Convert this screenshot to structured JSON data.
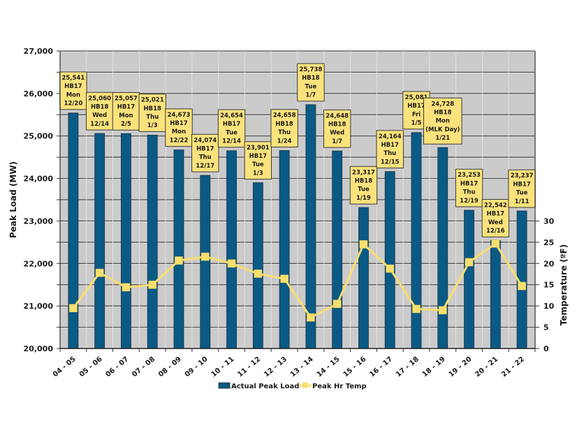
{
  "chart_data": {
    "type": "bar",
    "title": "",
    "xlabel": "",
    "ylabel": "Peak Load (MW)",
    "y2label": "Temperature (ºF)",
    "ylim": [
      20000,
      27000
    ],
    "y_ticks": [
      "20,000",
      "21,000",
      "22,000",
      "23,000",
      "24,000",
      "25,000",
      "26,000",
      "27,000"
    ],
    "y_tick_values": [
      20000,
      21000,
      22000,
      23000,
      24000,
      25000,
      26000,
      27000
    ],
    "y_gridline_step": 500,
    "y2lim": [
      0,
      70
    ],
    "y2_ticks": [
      "0",
      "5",
      "10",
      "15",
      "20",
      "25",
      "30"
    ],
    "y2_tick_values": [
      0,
      5,
      10,
      15,
      20,
      25,
      30
    ],
    "grid": true,
    "legend_position": "bottom",
    "categories": [
      "04 - 05",
      "05 - 06",
      "06 - 07",
      "07 - 08",
      "08 - 09",
      "09 - 10",
      "10 - 11",
      "11 - 12",
      "12 - 13",
      "13 - 14",
      "14 - 15",
      "15 - 16",
      "16 - 17",
      "17 - 18",
      "18 - 19",
      "19 - 20",
      "20 - 21",
      "21 - 22"
    ],
    "series": [
      {
        "name": "Actual Peak Load",
        "type": "bar",
        "axis": "left",
        "color": "#0A5A86",
        "values": [
          25541,
          25060,
          25057,
          25021,
          24673,
          24074,
          24654,
          23901,
          24658,
          25738,
          24648,
          23317,
          24164,
          25081,
          24728,
          23253,
          22542,
          23237
        ]
      },
      {
        "name": "Peak Hr Temp",
        "type": "line",
        "axis": "right",
        "color": "#F7DF6E",
        "values": [
          9.5,
          17.8,
          14.4,
          15,
          20.7,
          21.6,
          20,
          17.6,
          16.4,
          7.3,
          10.5,
          24.5,
          18.8,
          9.3,
          9,
          20.3,
          24.7,
          14.7
        ]
      }
    ],
    "annotations": [
      {
        "lines": [
          "25,541",
          "HB17",
          "Mon",
          "12/20"
        ]
      },
      {
        "lines": [
          "25,060",
          "HB18",
          "Wed",
          "12/14"
        ]
      },
      {
        "lines": [
          "25,057",
          "HB17",
          "Mon",
          "2/5"
        ]
      },
      {
        "lines": [
          "25,021",
          "HB18",
          "Thu",
          "1/3"
        ]
      },
      {
        "lines": [
          "24,673",
          "HB17",
          "Mon",
          "12/22"
        ]
      },
      {
        "lines": [
          "24,074",
          "HB17",
          "Thu",
          "12/17"
        ]
      },
      {
        "lines": [
          "24,654",
          "HB17",
          "Tue",
          "12/14"
        ]
      },
      {
        "lines": [
          "23,901",
          "HB17",
          "Tue",
          "1/3"
        ]
      },
      {
        "lines": [
          "24,658",
          "HB18",
          "Thu",
          "1/24"
        ]
      },
      {
        "lines": [
          "25,738",
          "HB18",
          "Tue",
          "1/7"
        ]
      },
      {
        "lines": [
          "24,648",
          "HB18",
          "Wed",
          "1/7"
        ]
      },
      {
        "lines": [
          "23,317",
          "HB18",
          "Tue",
          "1/19"
        ]
      },
      {
        "lines": [
          "24,164",
          "HB17",
          "Thu",
          "12/15"
        ]
      },
      {
        "lines": [
          "25,081",
          "HB17",
          "Fri",
          "1/5"
        ]
      },
      {
        "lines": [
          "24,728",
          "HB18",
          "Mon",
          "(MLK Day)",
          "1/21"
        ]
      },
      {
        "lines": [
          "23,253",
          "HB17",
          "Thu",
          "12/19"
        ]
      },
      {
        "lines": [
          "22,542",
          "HB17",
          "Wed",
          "12/16"
        ]
      },
      {
        "lines": [
          "23,237",
          "HB17",
          "Tue",
          "1/11"
        ]
      }
    ],
    "colors": {
      "plot_background": "#CBCBCB",
      "gridline": "#4A4A4A",
      "callout_fill": "#FAE27C",
      "callout_border": "#3A3A3A"
    }
  }
}
